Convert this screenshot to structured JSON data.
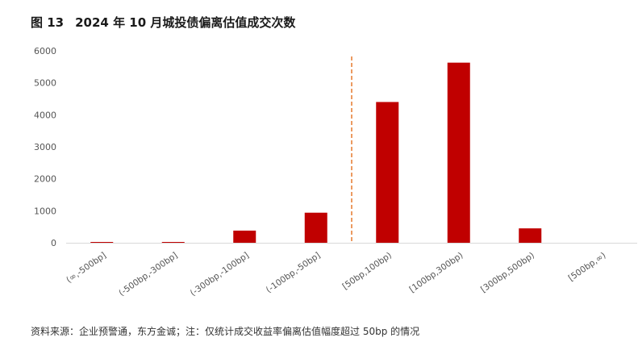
{
  "title": {
    "figure_no": "图 13",
    "text": "2024 年 10 月城投债偏离估值成交次数"
  },
  "source": "资料来源：企业预警通，东方金诚；注：仅统计成交收益率偏离估值幅度超过 50bp 的情况",
  "chart_data": {
    "type": "bar",
    "title": "2024 年 10 月城投债偏离估值成交次数",
    "xlabel": "",
    "ylabel": "",
    "categories": [
      "(∞,-500bp]",
      "(-500bp,-300bp]",
      "(-300bp,-100bp]",
      "(-100bp,-50bp]",
      "[50bp,100bp)",
      "[100bp,300bp)",
      "[300bp,500bp)",
      "[500bp,∞)"
    ],
    "values": [
      25,
      25,
      380,
      940,
      4400,
      5630,
      450,
      0
    ],
    "ylim": [
      0,
      6000
    ],
    "yticks": [
      0,
      1000,
      2000,
      3000,
      4000,
      5000,
      6000
    ],
    "grid": false,
    "legend": "none",
    "bar_color": "#c00000",
    "divider_color": "#e8823a",
    "divider_between": [
      3,
      4
    ]
  }
}
